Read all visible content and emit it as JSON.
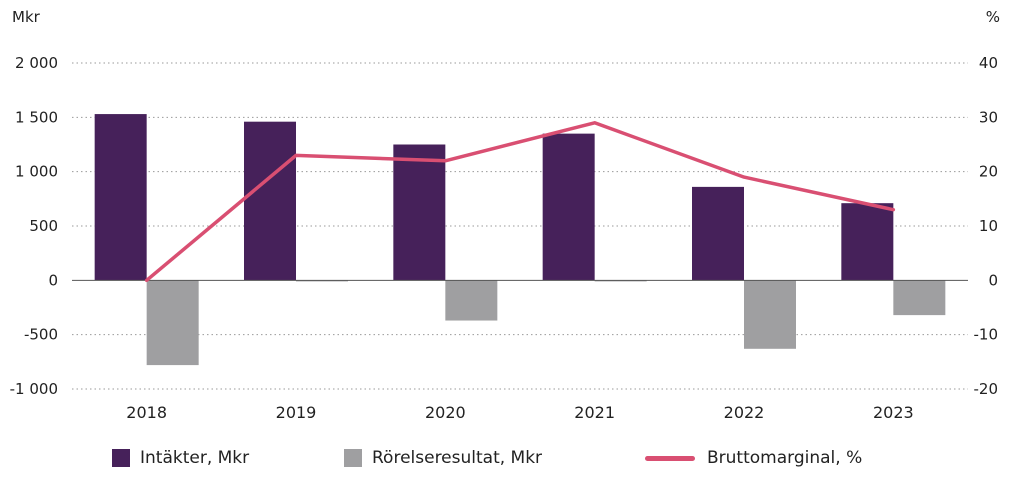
{
  "chart_data": {
    "type": "bar",
    "categories": [
      "2018",
      "2019",
      "2020",
      "2021",
      "2022",
      "2023"
    ],
    "left_axis": {
      "unit": "Mkr",
      "ylim": [
        -1000,
        2000
      ],
      "ticks": [
        2000,
        1500,
        1000,
        500,
        0,
        -500,
        -1000
      ],
      "tick_labels": [
        "2 000",
        "1 500",
        "1 000",
        "500",
        "0",
        "-500",
        "-1 000"
      ]
    },
    "right_axis": {
      "unit": "%",
      "ylim": [
        -20,
        40
      ],
      "ticks": [
        40,
        30,
        20,
        10,
        0,
        -10,
        -20
      ],
      "tick_labels": [
        "40",
        "30",
        "20",
        "10",
        "0",
        "-10",
        "-20"
      ]
    },
    "series": [
      {
        "name": "Intäkter, Mkr",
        "type": "bar",
        "axis": "left",
        "color": "#46215a",
        "values": [
          1530,
          1460,
          1250,
          1350,
          860,
          710
        ]
      },
      {
        "name": "Rörelseresultat, Mkr",
        "type": "bar",
        "axis": "left",
        "color": "#9f9fa1",
        "values": [
          -780,
          -10,
          -370,
          -10,
          -630,
          -320
        ]
      },
      {
        "name": "Bruttomarginal, %",
        "type": "line",
        "axis": "right",
        "color": "#d94f72",
        "values": [
          0,
          23,
          22,
          29,
          19,
          13
        ]
      }
    ],
    "grid": true,
    "legend": "bottom"
  }
}
